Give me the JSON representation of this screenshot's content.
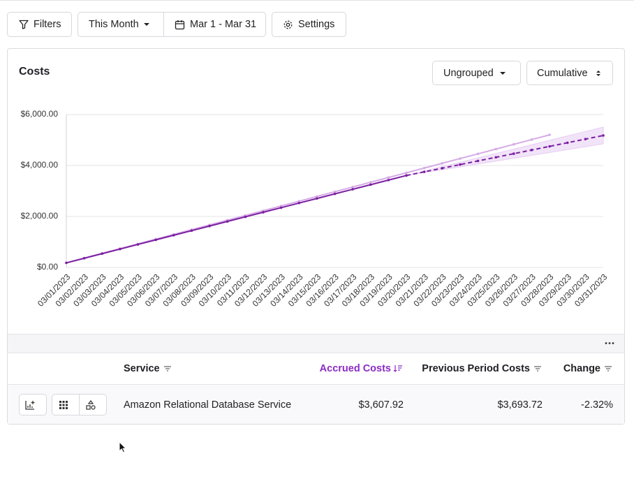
{
  "toolbar": {
    "filters": "Filters",
    "period": "This Month",
    "range": "Mar 1 - Mar 31",
    "settings": "Settings"
  },
  "card": {
    "title": "Costs",
    "grouping": "Ungrouped",
    "mode": "Cumulative"
  },
  "chart_data": {
    "type": "line",
    "categories": [
      "03/01/2023",
      "03/02/2023",
      "03/03/2023",
      "03/04/2023",
      "03/05/2023",
      "03/06/2023",
      "03/07/2023",
      "03/08/2023",
      "03/09/2023",
      "03/10/2023",
      "03/11/2023",
      "03/12/2023",
      "03/13/2023",
      "03/14/2023",
      "03/15/2023",
      "03/16/2023",
      "03/17/2023",
      "03/18/2023",
      "03/19/2023",
      "03/20/2023",
      "03/21/2023",
      "03/22/2023",
      "03/23/2023",
      "03/24/2023",
      "03/25/2023",
      "03/26/2023",
      "03/27/2023",
      "03/28/2023",
      "03/29/2023",
      "03/30/2023",
      "03/31/2023"
    ],
    "ylim": [
      0,
      6000
    ],
    "yticks": [
      {
        "value": 0,
        "label": "$0.00"
      },
      {
        "value": 2000,
        "label": "$2,000.00"
      },
      {
        "value": 4000,
        "label": "$4,000.00"
      },
      {
        "value": 6000,
        "label": "$6,000.00"
      }
    ],
    "grid": true,
    "series": [
      {
        "color": "#d5abe6",
        "style": "solid",
        "values": [
          180,
          366,
          552,
          738,
          924,
          1110,
          1296,
          1482,
          1668,
          1854,
          2040,
          2226,
          2412,
          2598,
          2784,
          2970,
          3156,
          3342,
          3528,
          3714,
          3900,
          4086,
          4272,
          4458,
          4644,
          4830,
          5016,
          5202,
          null,
          null,
          null
        ]
      },
      {
        "color": "#7b1fa2",
        "style": "solid",
        "values": [
          180,
          360,
          541,
          721,
          902,
          1082,
          1263,
          1443,
          1624,
          1804,
          1984,
          2165,
          2345,
          2526,
          2706,
          2887,
          3067,
          3247,
          3428,
          3608,
          null,
          null,
          null,
          null,
          null,
          null,
          null,
          null,
          null,
          null,
          null
        ]
      },
      {
        "color": "#7b1fa2",
        "style": "dashed",
        "values": [
          null,
          null,
          null,
          null,
          null,
          null,
          null,
          null,
          null,
          null,
          null,
          null,
          null,
          null,
          null,
          null,
          null,
          null,
          null,
          3608,
          3751,
          3893,
          4036,
          4179,
          4322,
          4464,
          4607,
          4750,
          4893,
          5035,
          5178
        ]
      }
    ],
    "band": {
      "color": "#e6cdf3",
      "upper": [
        null,
        null,
        null,
        null,
        null,
        null,
        null,
        null,
        null,
        null,
        null,
        null,
        null,
        null,
        null,
        null,
        null,
        null,
        null,
        3608,
        3781,
        3953,
        4126,
        4298,
        4471,
        4644,
        4816,
        4989,
        5162,
        5334,
        5507
      ],
      "lower": [
        null,
        null,
        null,
        null,
        null,
        null,
        null,
        null,
        null,
        null,
        null,
        null,
        null,
        null,
        null,
        null,
        null,
        null,
        null,
        3608,
        3721,
        3834,
        3946,
        4059,
        4172,
        4285,
        4398,
        4510,
        4623,
        4736,
        4849
      ]
    }
  },
  "table": {
    "headers": [
      "Service",
      "Accrued Costs",
      "Previous Period Costs",
      "Change"
    ],
    "rows": [
      [
        "Amazon Relational Database Service",
        "$3,607.92",
        "$3,693.72",
        "-2.32%"
      ]
    ]
  }
}
